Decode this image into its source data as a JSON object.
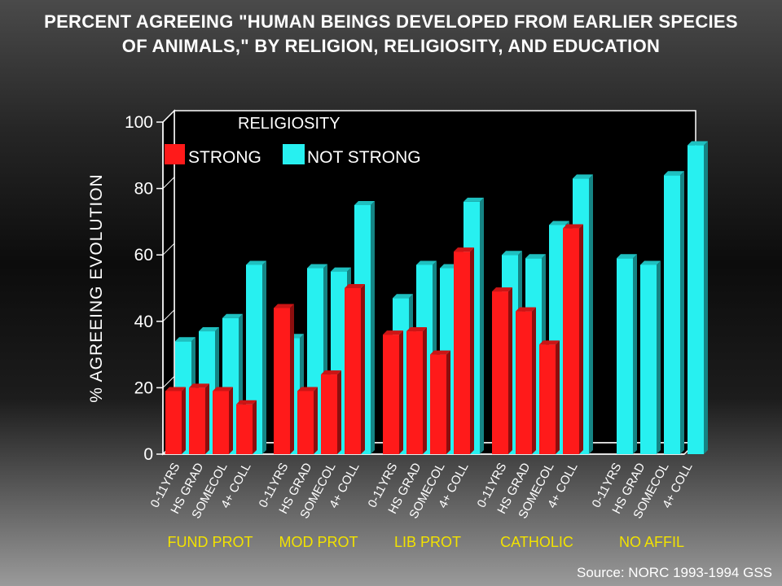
{
  "title_lines": [
    "PERCENT AGREEING \"HUMAN BEINGS DEVELOPED FROM EARLIER SPECIES",
    "OF ANIMALS,\" BY RELIGION, RELIGIOSITY, AND EDUCATION"
  ],
  "source": "Source: NORC 1993-1994 GSS",
  "colors": {
    "strong": "#ff1a1a",
    "not_strong": "#27f0f0",
    "group_label": "#f2e200",
    "axis": "#ffffff"
  },
  "chart_data": {
    "type": "bar",
    "title": "PERCENT AGREEING \"HUMAN BEINGS DEVELOPED FROM EARLIER SPECIES OF ANIMALS,\" BY RELIGION, RELIGIOSITY, AND EDUCATION",
    "ylabel": "% AGREEING EVOLUTION",
    "ylim": [
      0,
      100
    ],
    "yticks": [
      "0",
      "20",
      "40",
      "60",
      "80",
      "100"
    ],
    "legend_title": "RELIGIOSITY",
    "legend_position": "top-left",
    "grid": false,
    "education_levels": [
      "0-11YRS",
      "HS GRAD",
      "SOMECOL",
      "4+ COLL"
    ],
    "groups": [
      {
        "name": "FUND PROT",
        "strong": [
          19,
          20,
          19,
          15
        ],
        "not_strong": [
          34,
          37,
          41,
          57
        ]
      },
      {
        "name": "MOD PROT",
        "strong": [
          44,
          19,
          24,
          50
        ],
        "not_strong": [
          35,
          56,
          55,
          75
        ]
      },
      {
        "name": "LIB PROT",
        "strong": [
          36,
          37,
          30,
          61
        ],
        "not_strong": [
          47,
          57,
          56,
          76
        ]
      },
      {
        "name": "CATHOLIC",
        "strong": [
          49,
          43,
          33,
          68
        ],
        "not_strong": [
          60,
          59,
          69,
          83
        ]
      },
      {
        "name": "NO AFFIL",
        "strong": [
          null,
          null,
          null,
          null
        ],
        "not_strong": [
          59,
          57,
          84,
          93
        ]
      }
    ],
    "series": [
      {
        "name": "STRONG"
      },
      {
        "name": "NOT STRONG"
      }
    ]
  }
}
